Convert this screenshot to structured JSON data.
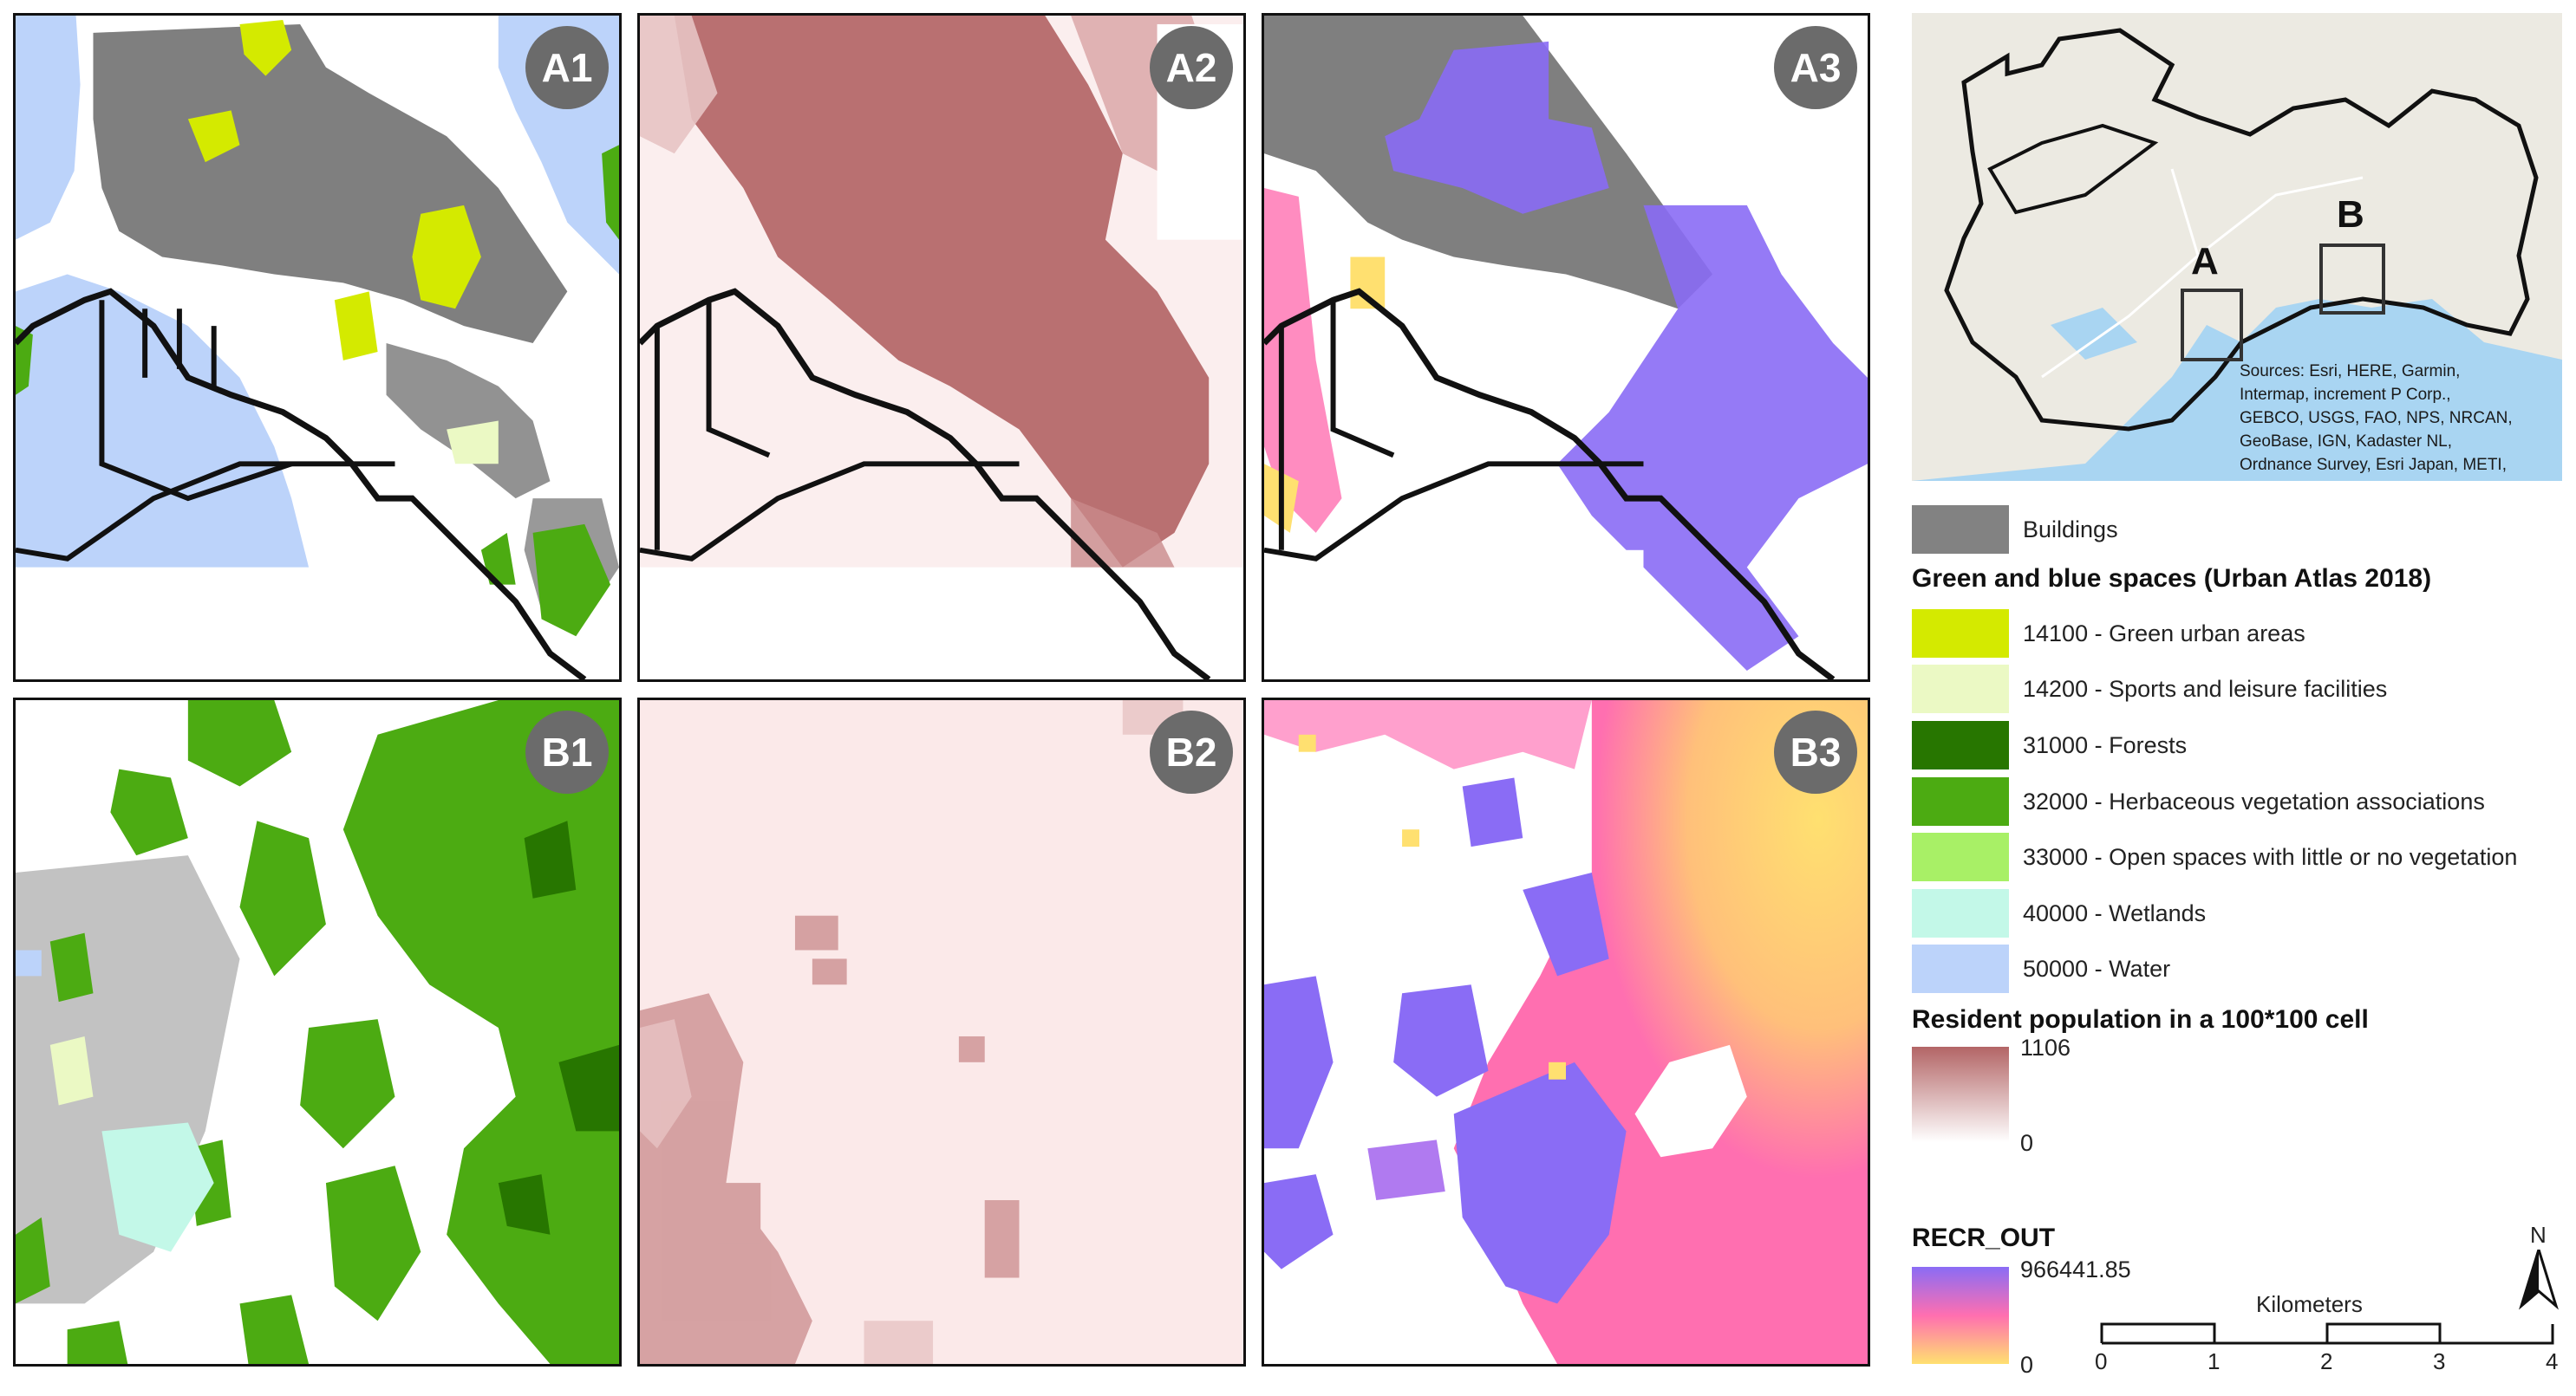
{
  "panels": {
    "a1": "A1",
    "a2": "A2",
    "a3": "A3",
    "b1": "B1",
    "b2": "B2",
    "b3": "B3"
  },
  "overview": {
    "box_a": "A",
    "box_b": "B",
    "attribution": [
      "Sources: Esri, HERE, Garmin,",
      "Intermap, increment P Corp.,",
      "GEBCO, USGS, FAO, NPS, NRCAN,",
      "GeoBase, IGN, Kadaster NL,",
      "Ordnance Survey, Esri Japan, METI,"
    ]
  },
  "legend": {
    "buildings": {
      "label": "Buildings",
      "color": "#828282"
    },
    "green_blue_title": "Green and blue spaces (Urban Atlas 2018)",
    "classes": [
      {
        "label": "14100 - Green urban areas",
        "color": "#d4ea00"
      },
      {
        "label": "14200 - Sports and leisure facilities",
        "color": "#ebf9c4"
      },
      {
        "label": "31000 - Forests",
        "color": "#277600"
      },
      {
        "label": "32000 - Herbaceous vegetation associations",
        "color": "#4cab12"
      },
      {
        "label": "33000 - Open spaces with little or no vegetation",
        "color": "#a8f066"
      },
      {
        "label": "40000 - Wetlands",
        "color": "#c3f8e8"
      },
      {
        "label": "50000 - Water",
        "color": "#bcd3fa"
      }
    ],
    "population": {
      "title": "Resident population in a 100*100 cell",
      "max": "1106",
      "min": "0",
      "color_high": "#b36566",
      "color_low": "#ffffff"
    },
    "recr": {
      "title": "RECR_OUT",
      "max": "966441.85",
      "min": "0",
      "colors": [
        "#8a6cf5",
        "#ff6fb0",
        "#ffe070"
      ]
    }
  },
  "north_arrow": {
    "label": "N"
  },
  "scale_bar": {
    "title": "Kilometers",
    "ticks": [
      "0",
      "1",
      "2",
      "3",
      "4"
    ]
  }
}
